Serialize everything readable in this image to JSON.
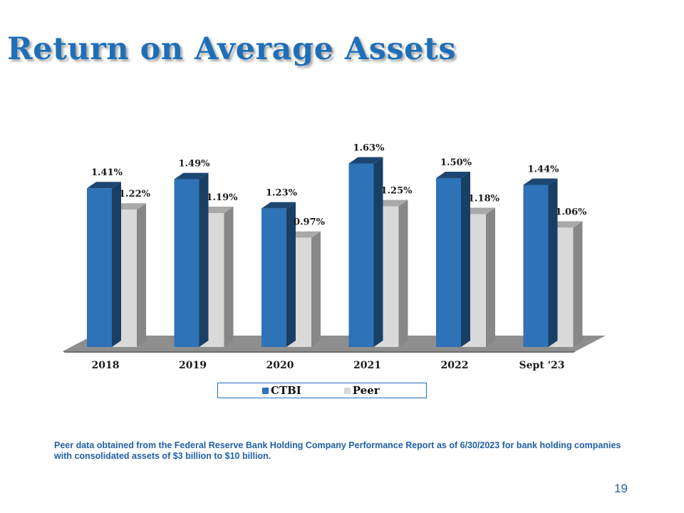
{
  "title": "Return on Average Assets",
  "chart_data": {
    "type": "bar",
    "categories": [
      "2018",
      "2019",
      "2020",
      "2021",
      "2022",
      "Sept '23"
    ],
    "series": [
      {
        "name": "CTBI",
        "values": [
          1.41,
          1.49,
          1.23,
          1.63,
          1.5,
          1.44
        ],
        "labels": [
          "1.41%",
          "1.49%",
          "1.23%",
          "1.63%",
          "1.50%",
          "1.44%"
        ],
        "color": "#2e72b8"
      },
      {
        "name": "Peer",
        "values": [
          1.22,
          1.19,
          0.97,
          1.25,
          1.18,
          1.06
        ],
        "labels": [
          "1.22%",
          "1.19%",
          "0.97%",
          "1.25%",
          "1.18%",
          "1.06%"
        ],
        "color": "#d9d9d9"
      }
    ],
    "three_d": true,
    "grid": false,
    "legend_position": "bottom"
  },
  "legend": {
    "items": [
      {
        "label": "CTBI",
        "color": "#2e72b8"
      },
      {
        "label": "Peer",
        "color": "#d9d9d9"
      }
    ]
  },
  "footnote": "Peer data obtained from the Federal Reserve Bank Holding Company Performance Report as of 6/30/2023 for bank holding companies with consolidated assets of $3 billion to $10 billion.",
  "page_number": "19",
  "colors": {
    "title": "#1f6fb8",
    "ctbi": "#2e72b8",
    "peer": "#d9d9d9",
    "footnote": "#1f5fa8"
  }
}
